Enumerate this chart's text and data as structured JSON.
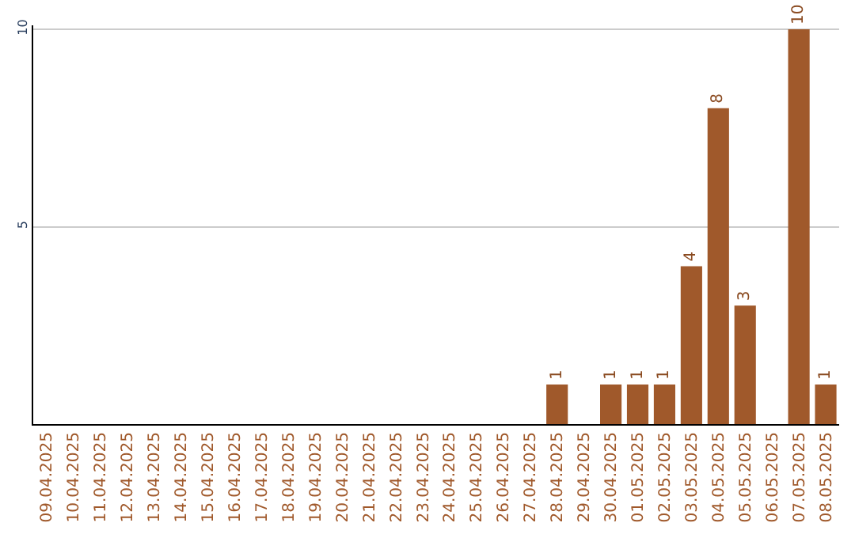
{
  "chart_data": {
    "type": "bar",
    "categories": [
      "09.04.2025",
      "10.04.2025",
      "11.04.2025",
      "12.04.2025",
      "13.04.2025",
      "14.04.2025",
      "15.04.2025",
      "16.04.2025",
      "17.04.2025",
      "18.04.2025",
      "19.04.2025",
      "20.04.2025",
      "21.04.2025",
      "22.04.2025",
      "23.04.2025",
      "24.04.2025",
      "25.04.2025",
      "26.04.2025",
      "27.04.2025",
      "28.04.2025",
      "29.04.2025",
      "30.04.2025",
      "01.05.2025",
      "02.05.2025",
      "03.05.2025",
      "04.05.2025",
      "05.05.2025",
      "06.05.2025",
      "07.05.2025",
      "08.05.2025"
    ],
    "values": [
      null,
      null,
      null,
      null,
      null,
      null,
      null,
      null,
      null,
      null,
      null,
      null,
      null,
      null,
      null,
      null,
      null,
      null,
      null,
      1,
      null,
      1,
      1,
      1,
      4,
      8,
      3,
      null,
      10,
      1
    ],
    "color": "#a0592b",
    "ylim": [
      0,
      10.1
    ],
    "yticks": [
      5,
      10
    ],
    "grid": "y",
    "data_labels": true,
    "legend": false
  }
}
